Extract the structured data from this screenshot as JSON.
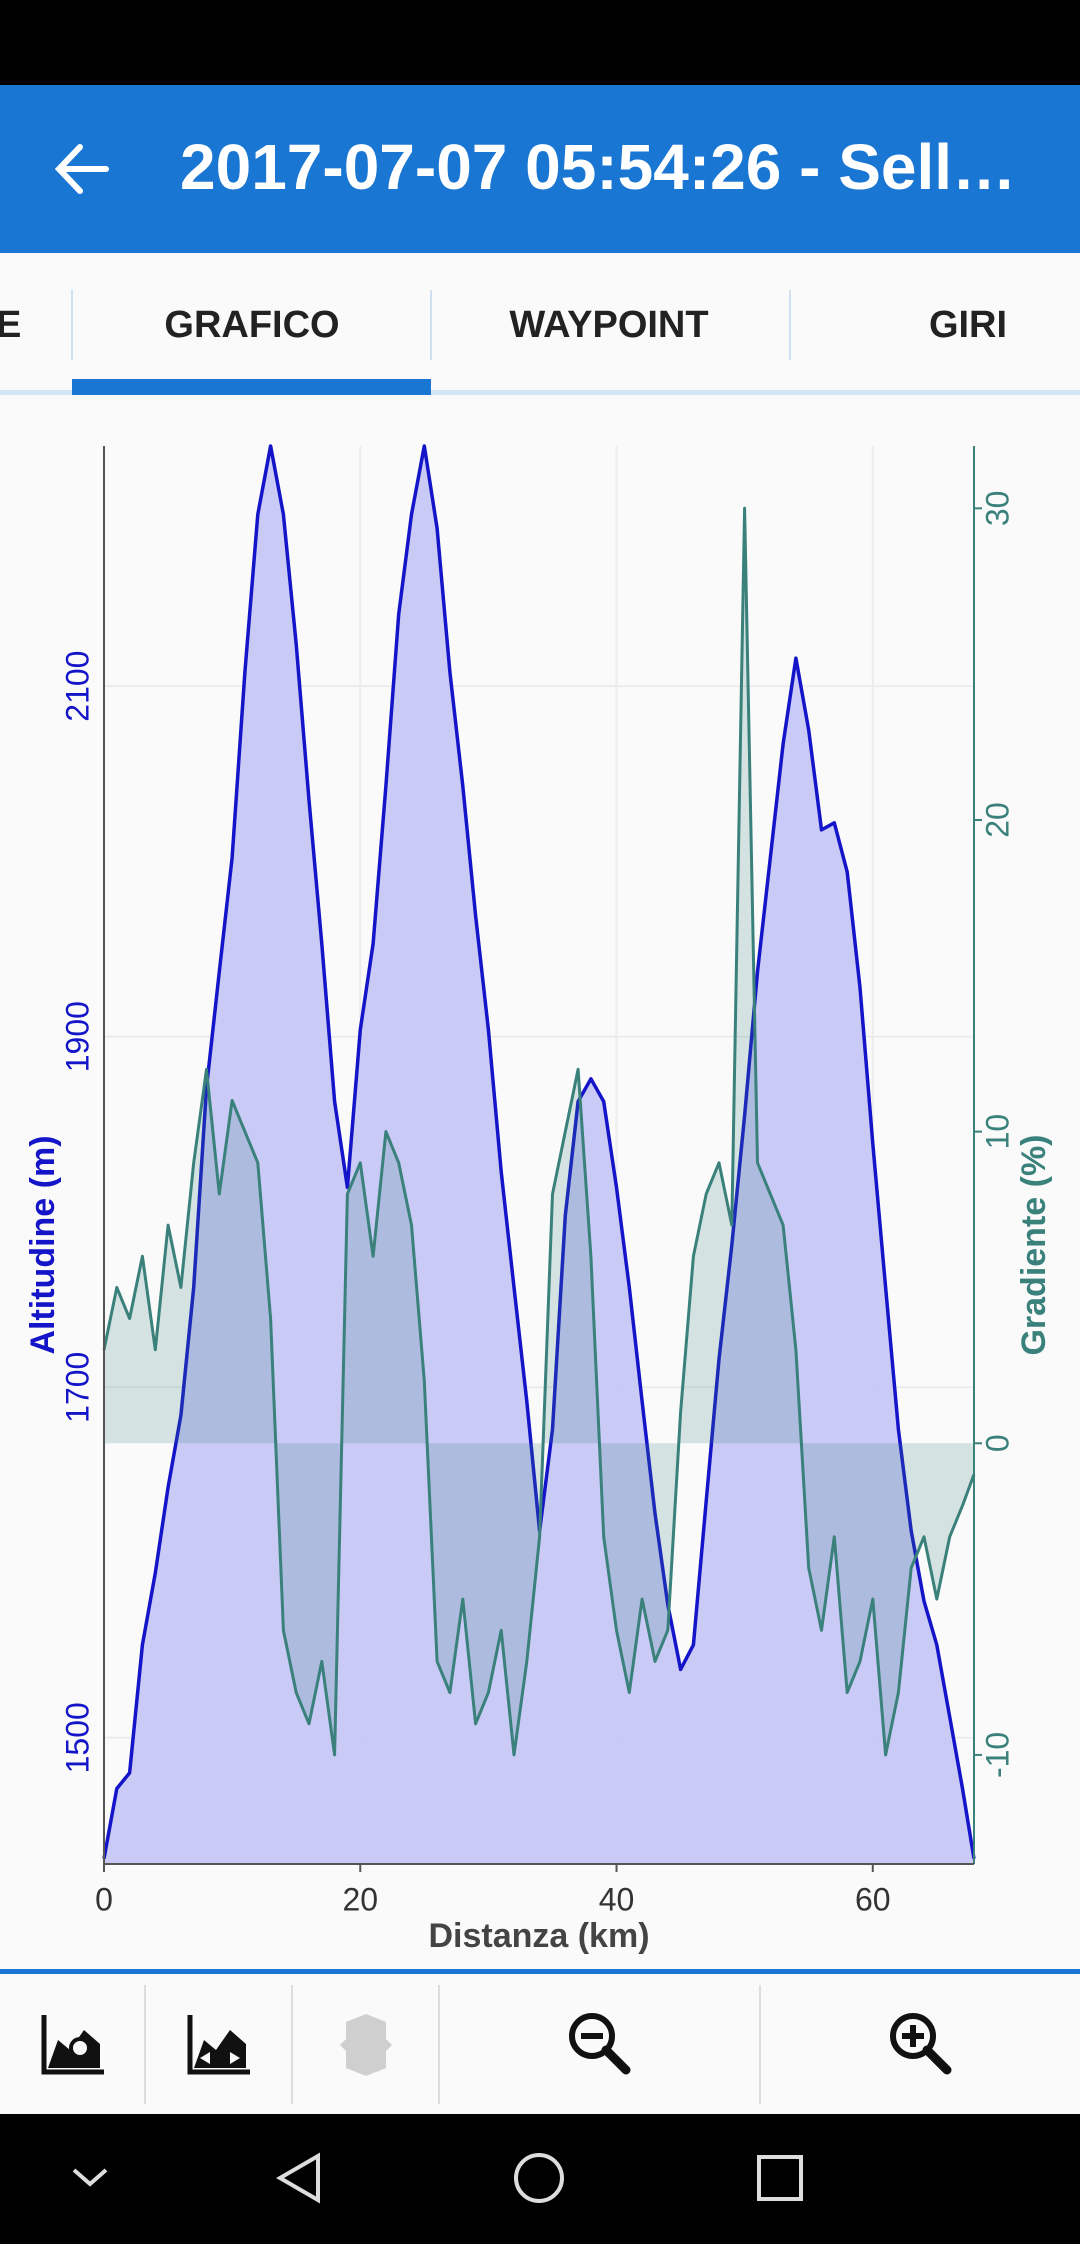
{
  "header": {
    "title": "2017-07-07 05:54:26 - Sell…"
  },
  "tabs": [
    "E",
    "GRAFICO",
    "WAYPOINT",
    "GIRI"
  ],
  "chart_data": {
    "type": "line",
    "xlabel": "Distanza (km)",
    "ylabel": "Altitudine (m)",
    "y2label": "Gradiente (%)",
    "x": [
      0,
      1,
      2,
      3,
      4,
      5,
      6,
      7,
      8,
      9,
      10,
      11,
      12,
      13,
      14,
      15,
      16,
      17,
      18,
      19,
      20,
      21,
      22,
      23,
      24,
      25,
      26,
      27,
      28,
      29,
      30,
      31,
      32,
      33,
      34,
      35,
      36,
      37,
      38,
      39,
      40,
      41,
      42,
      43,
      44,
      45,
      46,
      47,
      48,
      49,
      50,
      51,
      52,
      53,
      54,
      55,
      56,
      57,
      58,
      59,
      60,
      61,
      62,
      63,
      64,
      65,
      66,
      67,
      67.9
    ],
    "xlim": [
      0,
      67.9
    ],
    "xticks": [
      0,
      20,
      40,
      60
    ],
    "ylim": [
      1428,
      2237
    ],
    "yticks": [
      1500,
      1700,
      1900,
      2100
    ],
    "y2lim": [
      -13.5,
      32
    ],
    "y2ticks": [
      -10,
      0,
      10,
      20,
      30
    ],
    "grid": true,
    "series": [
      {
        "color": "#1414c8",
        "fill": "#c7c7f7",
        "axis": "y",
        "values": [
          1431,
          1471,
          1480,
          1553,
          1594,
          1643,
          1684,
          1757,
          1871,
          1937,
          2002,
          2108,
          2198,
          2237,
          2198,
          2124,
          2035,
          1953,
          1863,
          1814,
          1904,
          1953,
          2043,
          2141,
          2198,
          2237,
          2190,
          2108,
          2043,
          1969,
          1904,
          1823,
          1757,
          1692,
          1618,
          1676,
          1798,
          1863,
          1876,
          1863,
          1814,
          1757,
          1692,
          1628,
          1576,
          1539,
          1553,
          1635,
          1716,
          1781,
          1855,
          1937,
          2002,
          2067,
          2116,
          2075,
          2018,
          2022,
          1994,
          1928,
          1839,
          1757,
          1676,
          1618,
          1578,
          1553,
          1512,
          1471,
          1431
        ]
      },
      {
        "color": "#3a807b",
        "fill": "#3a807b",
        "axis": "y2",
        "values": [
          3,
          5,
          4,
          6,
          3,
          7,
          5,
          9,
          12,
          8,
          11,
          10,
          9,
          4,
          -6,
          -8,
          -9,
          -7,
          -10,
          8,
          9,
          6,
          10,
          9,
          7,
          2,
          -7,
          -8,
          -5,
          -9,
          -8,
          -6,
          -10,
          -7,
          -3,
          8,
          10,
          12,
          6,
          -3,
          -6,
          -8,
          -5,
          -7,
          -6,
          1,
          6,
          8,
          9,
          7,
          30,
          9,
          8,
          7,
          3,
          -4,
          -6,
          -3,
          -8,
          -7,
          -5,
          -10,
          -8,
          -4,
          -3,
          -5,
          -3,
          -2,
          -1
        ]
      }
    ]
  }
}
